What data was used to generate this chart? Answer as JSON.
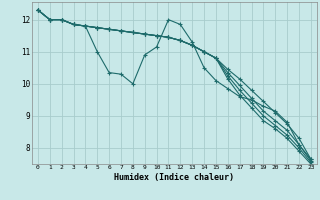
{
  "xlabel": "Humidex (Indice chaleur)",
  "bg_color": "#c8e8e8",
  "grid_color": "#a8cccc",
  "line_color": "#1e6b6b",
  "xlim": [
    -0.5,
    23.5
  ],
  "ylim": [
    7.5,
    12.55
  ],
  "yticks": [
    8,
    9,
    10,
    11,
    12
  ],
  "xticks": [
    0,
    1,
    2,
    3,
    4,
    5,
    6,
    7,
    8,
    9,
    10,
    11,
    12,
    13,
    14,
    15,
    16,
    17,
    18,
    19,
    20,
    21,
    22,
    23
  ],
  "lines": [
    [
      12.3,
      12.0,
      12.0,
      11.85,
      11.8,
      11.0,
      10.35,
      10.3,
      10.0,
      10.9,
      11.15,
      12.0,
      11.85,
      11.3,
      10.5,
      10.1,
      9.85,
      9.6,
      9.5,
      9.3,
      9.15,
      8.8,
      8.1,
      7.65
    ],
    [
      12.3,
      12.0,
      12.0,
      11.85,
      11.8,
      11.75,
      11.7,
      11.65,
      11.6,
      11.55,
      11.5,
      11.45,
      11.35,
      11.2,
      11.0,
      10.8,
      10.45,
      10.15,
      9.8,
      9.45,
      9.1,
      8.75,
      8.3,
      7.65
    ],
    [
      12.3,
      12.0,
      12.0,
      11.85,
      11.8,
      11.75,
      11.7,
      11.65,
      11.6,
      11.55,
      11.5,
      11.45,
      11.35,
      11.2,
      11.0,
      10.8,
      10.35,
      9.95,
      9.55,
      9.15,
      8.85,
      8.55,
      8.1,
      7.6
    ],
    [
      12.3,
      12.0,
      12.0,
      11.85,
      11.8,
      11.75,
      11.7,
      11.65,
      11.6,
      11.55,
      11.5,
      11.45,
      11.35,
      11.2,
      11.0,
      10.8,
      10.25,
      9.8,
      9.4,
      9.0,
      8.7,
      8.4,
      8.0,
      7.55
    ],
    [
      12.3,
      12.0,
      12.0,
      11.85,
      11.8,
      11.75,
      11.7,
      11.65,
      11.6,
      11.55,
      11.5,
      11.45,
      11.35,
      11.2,
      11.0,
      10.8,
      10.15,
      9.65,
      9.25,
      8.85,
      8.6,
      8.3,
      7.9,
      7.5
    ]
  ]
}
